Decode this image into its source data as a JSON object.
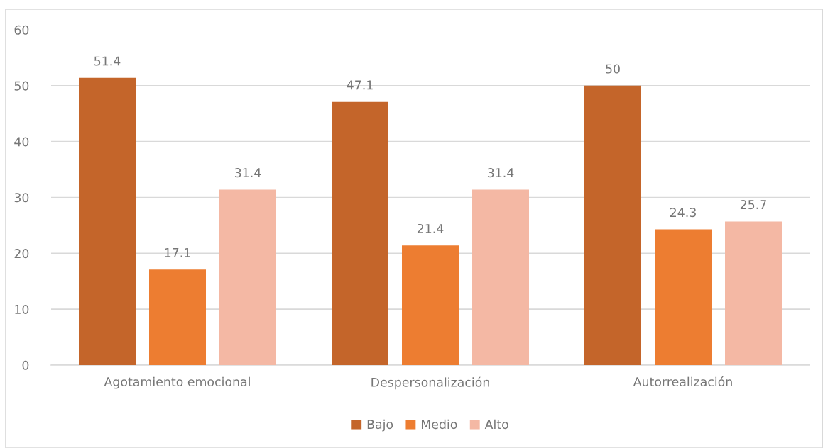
{
  "chart_data": {
    "type": "bar",
    "categories": [
      "Agotamiento emocional",
      "Despersonalización",
      "Autorrealización"
    ],
    "series": [
      {
        "name": "Bajo",
        "color": "#c4652a",
        "values": [
          51.4,
          47.1,
          50
        ]
      },
      {
        "name": "Medio",
        "color": "#ed7d31",
        "values": [
          17.1,
          21.4,
          24.3
        ]
      },
      {
        "name": "Alto",
        "color": "#f4b8a4",
        "values": [
          31.4,
          31.4,
          25.7
        ]
      }
    ],
    "ylim": [
      0,
      60
    ],
    "yticks": [
      0,
      10,
      20,
      30,
      40,
      50,
      60
    ],
    "grid": "y",
    "legend": "bottom",
    "data_labels": true
  }
}
